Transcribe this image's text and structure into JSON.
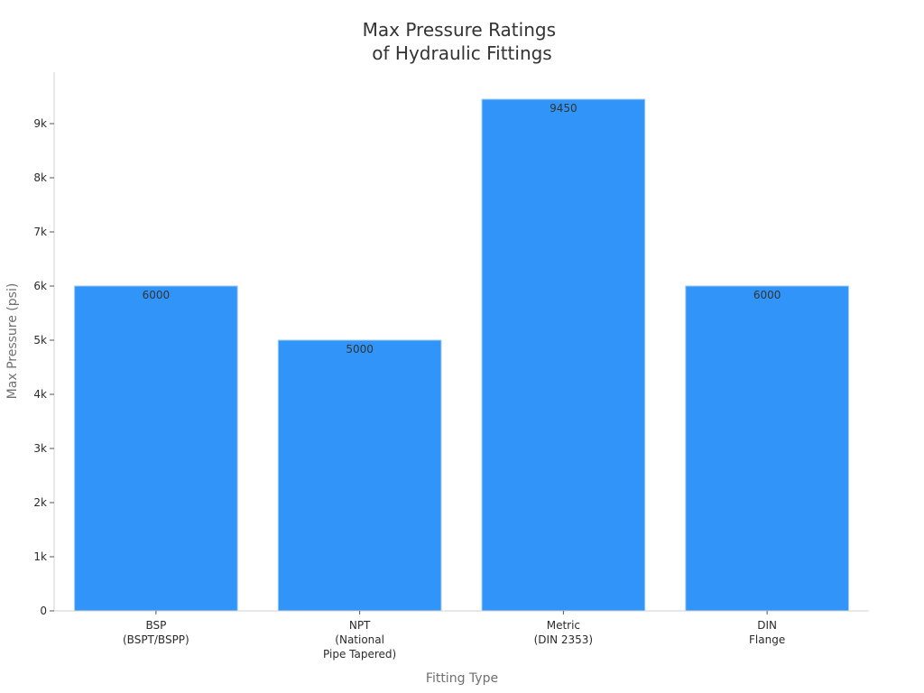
{
  "chart_data": {
    "type": "bar",
    "title_lines": [
      "Max Pressure Ratings",
      "of Hydraulic Fittings"
    ],
    "xlabel": "Fitting Type",
    "ylabel": "Max Pressure (psi)",
    "categories": [
      [
        "BSP",
        "(BSPT/BSPP)"
      ],
      [
        "NPT",
        "(National",
        "Pipe Tapered)"
      ],
      [
        "Metric",
        "(DIN 2353)"
      ],
      [
        "DIN",
        "Flange"
      ]
    ],
    "values": [
      6000,
      5000,
      9450,
      6000
    ],
    "data_labels": [
      "6000",
      "5000",
      "9450",
      "6000"
    ],
    "ylim": [
      0,
      9950
    ],
    "yticks": [
      0,
      1000,
      2000,
      3000,
      4000,
      5000,
      6000,
      7000,
      8000,
      9000
    ],
    "ytick_labels": [
      "0",
      "1k",
      "2k",
      "3k",
      "4k",
      "5k",
      "6k",
      "7k",
      "8k",
      "9k"
    ],
    "grid": false,
    "legend": "none",
    "colors": {
      "bar": "#3094f8",
      "bar_edge": "#9cc9f5",
      "title": "#333333",
      "axis_title": "#707070"
    }
  }
}
